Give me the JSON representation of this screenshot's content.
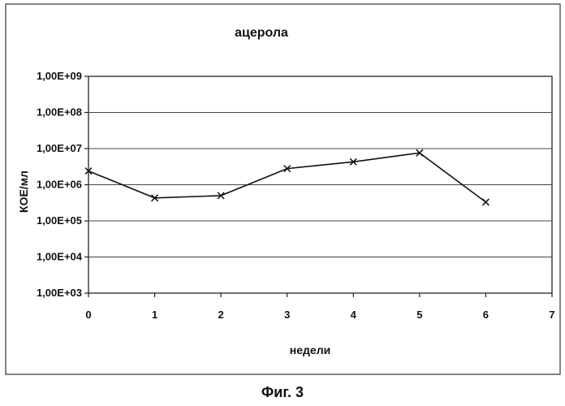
{
  "caption": "Фиг. 3",
  "chart_data": {
    "type": "line",
    "title": "ацерола",
    "xlabel": "недели",
    "ylabel": "КОЕ/мл",
    "y_scale": "log",
    "xlim": [
      0,
      7
    ],
    "ylim": [
      1000,
      1000000000
    ],
    "x_ticks": [
      "0",
      "1",
      "2",
      "3",
      "4",
      "5",
      "6",
      "7"
    ],
    "y_ticks": [
      "1,00E+03",
      "1,00E+04",
      "1,00E+05",
      "1,00E+06",
      "1,00E+07",
      "1,00E+08",
      "1,00E+09"
    ],
    "grid": "horizontal",
    "marker": "x",
    "series": [
      {
        "x": [
          0,
          1,
          2,
          3,
          4,
          5,
          6
        ],
        "values": [
          2400000,
          430000,
          500000,
          2800000,
          4300000,
          7600000,
          330000
        ]
      }
    ],
    "colors": {
      "line": "#111111",
      "grid": "#444444",
      "frame": "#222222"
    }
  }
}
